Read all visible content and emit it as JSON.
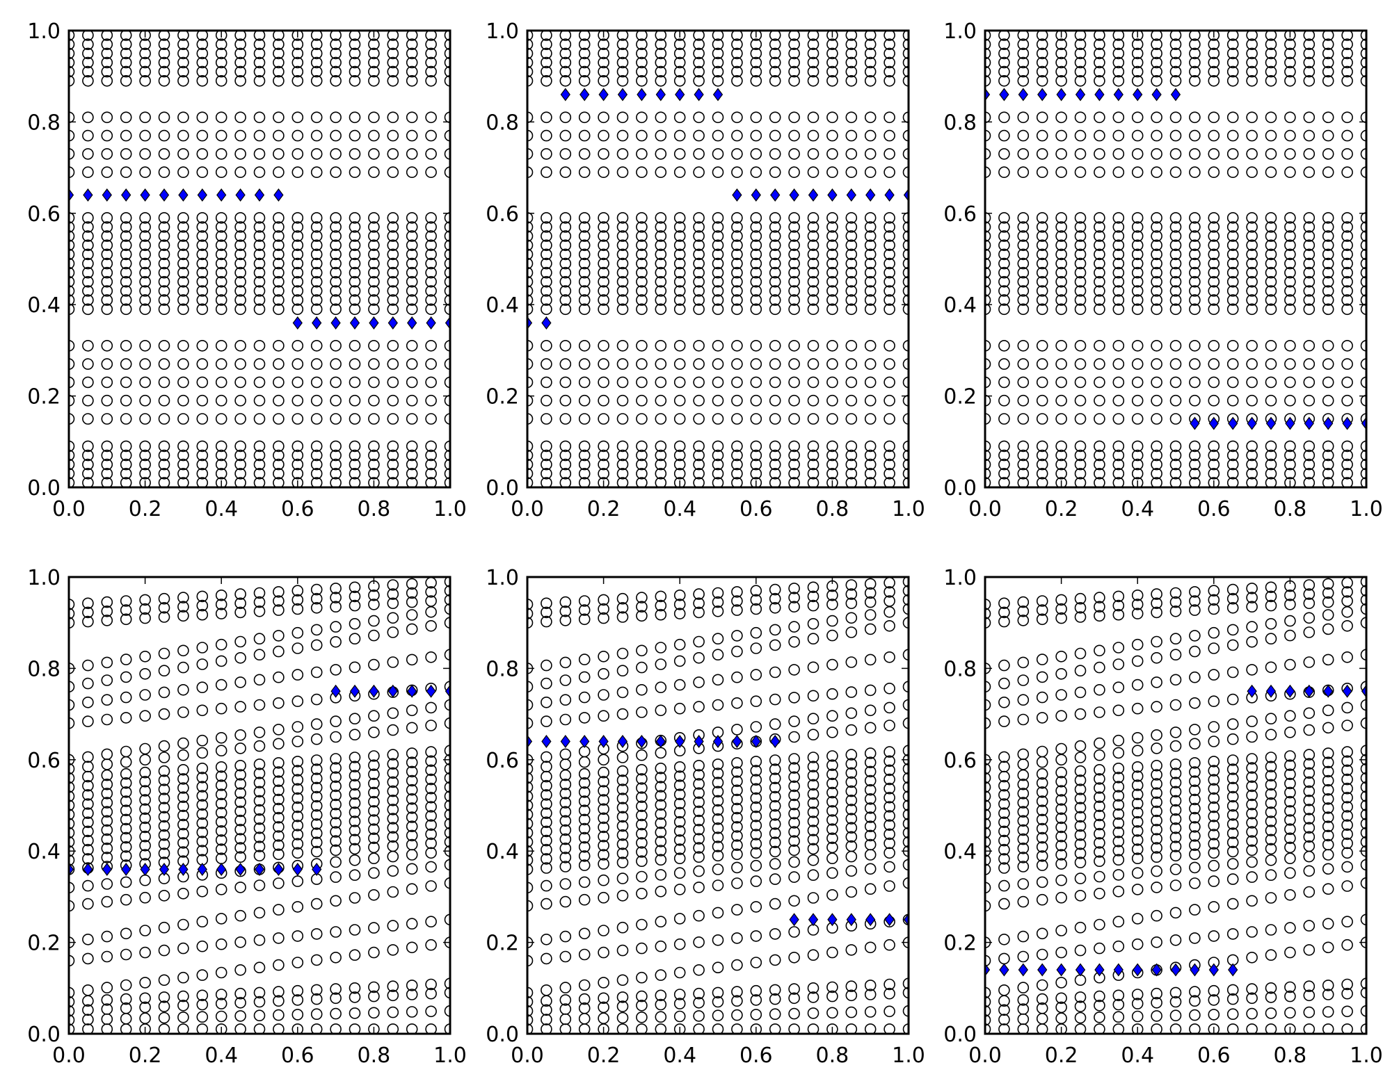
{
  "figure": {
    "background": "#ffffff",
    "layout": "2 rows x 3 columns",
    "shared_ticks": {
      "x": [
        "0.0",
        "0.2",
        "0.4",
        "0.6",
        "0.8",
        "1.0"
      ],
      "y": [
        "0.0",
        "0.2",
        "0.4",
        "0.6",
        "0.8",
        "1.0"
      ]
    },
    "colors": {
      "circle_edge": "#000000",
      "circle_fill": "none",
      "diamond_fill": "#0000ff",
      "diamond_edge": "#000000",
      "axes": "#000000"
    }
  },
  "chart_data": [
    {
      "type": "scatter",
      "title": "",
      "xlabel": "",
      "ylabel": "",
      "xlim": [
        0,
        1
      ],
      "ylim": [
        0,
        1
      ],
      "grid": false,
      "x_ticks": [
        "0.0",
        "0.2",
        "0.4",
        "0.6",
        "0.8",
        "1.0"
      ],
      "y_ticks": [
        "0.0",
        "0.2",
        "0.4",
        "0.6",
        "0.8",
        "1.0"
      ],
      "circle_columns_x": [
        0,
        0.05,
        0.1,
        0.15,
        0.2,
        0.25,
        0.3,
        0.35,
        0.4,
        0.45,
        0.5,
        0.55,
        0.6,
        0.65,
        0.7,
        0.75,
        0.8,
        0.85,
        0.9,
        0.95,
        1.0
      ],
      "circle_row_y_at_x0": [
        0.01,
        0.03,
        0.05,
        0.07,
        0.09,
        0.15,
        0.19,
        0.23,
        0.27,
        0.31,
        0.39,
        0.41,
        0.43,
        0.45,
        0.47,
        0.49,
        0.51,
        0.53,
        0.55,
        0.57,
        0.59,
        0.69,
        0.73,
        0.77,
        0.81,
        0.89,
        0.91,
        0.93,
        0.95,
        0.97,
        0.99
      ],
      "circle_row_y_at_x1": [
        0.01,
        0.03,
        0.05,
        0.07,
        0.09,
        0.15,
        0.19,
        0.23,
        0.27,
        0.31,
        0.39,
        0.41,
        0.43,
        0.45,
        0.47,
        0.49,
        0.51,
        0.53,
        0.55,
        0.57,
        0.59,
        0.69,
        0.73,
        0.77,
        0.81,
        0.89,
        0.91,
        0.93,
        0.95,
        0.97,
        0.99
      ],
      "diamond_segments": [
        {
          "y": 0.64,
          "x": [
            0,
            0.05,
            0.1,
            0.15,
            0.2,
            0.25,
            0.3,
            0.35,
            0.4,
            0.45,
            0.5,
            0.55
          ]
        },
        {
          "y": 0.36,
          "x": [
            0.6,
            0.65,
            0.7,
            0.75,
            0.8,
            0.85,
            0.9,
            0.95,
            1.0
          ]
        }
      ]
    },
    {
      "type": "scatter",
      "title": "",
      "xlabel": "",
      "ylabel": "",
      "xlim": [
        0,
        1
      ],
      "ylim": [
        0,
        1
      ],
      "grid": false,
      "x_ticks": [
        "0.0",
        "0.2",
        "0.4",
        "0.6",
        "0.8",
        "1.0"
      ],
      "y_ticks": [
        "0.0",
        "0.2",
        "0.4",
        "0.6",
        "0.8",
        "1.0"
      ],
      "circle_columns_x": [
        0,
        0.05,
        0.1,
        0.15,
        0.2,
        0.25,
        0.3,
        0.35,
        0.4,
        0.45,
        0.5,
        0.55,
        0.6,
        0.65,
        0.7,
        0.75,
        0.8,
        0.85,
        0.9,
        0.95,
        1.0
      ],
      "circle_row_y_at_x0": [
        0.01,
        0.03,
        0.05,
        0.07,
        0.09,
        0.15,
        0.19,
        0.23,
        0.27,
        0.31,
        0.39,
        0.41,
        0.43,
        0.45,
        0.47,
        0.49,
        0.51,
        0.53,
        0.55,
        0.57,
        0.59,
        0.69,
        0.73,
        0.77,
        0.81,
        0.89,
        0.91,
        0.93,
        0.95,
        0.97,
        0.99
      ],
      "circle_row_y_at_x1": [
        0.01,
        0.03,
        0.05,
        0.07,
        0.09,
        0.15,
        0.19,
        0.23,
        0.27,
        0.31,
        0.39,
        0.41,
        0.43,
        0.45,
        0.47,
        0.49,
        0.51,
        0.53,
        0.55,
        0.57,
        0.59,
        0.69,
        0.73,
        0.77,
        0.81,
        0.89,
        0.91,
        0.93,
        0.95,
        0.97,
        0.99
      ],
      "diamond_segments": [
        {
          "y": 0.36,
          "x": [
            0,
            0.05
          ]
        },
        {
          "y": 0.86,
          "x": [
            0.1,
            0.15,
            0.2,
            0.25,
            0.3,
            0.35,
            0.4,
            0.45,
            0.5
          ]
        },
        {
          "y": 0.64,
          "x": [
            0.55,
            0.6,
            0.65,
            0.7,
            0.75,
            0.8,
            0.85,
            0.9,
            0.95,
            1.0
          ]
        }
      ]
    },
    {
      "type": "scatter",
      "title": "",
      "xlabel": "",
      "ylabel": "",
      "xlim": [
        0,
        1
      ],
      "ylim": [
        0,
        1
      ],
      "grid": false,
      "x_ticks": [
        "0.0",
        "0.2",
        "0.4",
        "0.6",
        "0.8",
        "1.0"
      ],
      "y_ticks": [
        "0.0",
        "0.2",
        "0.4",
        "0.6",
        "0.8",
        "1.0"
      ],
      "circle_columns_x": [
        0,
        0.05,
        0.1,
        0.15,
        0.2,
        0.25,
        0.3,
        0.35,
        0.4,
        0.45,
        0.5,
        0.55,
        0.6,
        0.65,
        0.7,
        0.75,
        0.8,
        0.85,
        0.9,
        0.95,
        1.0
      ],
      "circle_row_y_at_x0": [
        0.01,
        0.03,
        0.05,
        0.07,
        0.09,
        0.15,
        0.19,
        0.23,
        0.27,
        0.31,
        0.39,
        0.41,
        0.43,
        0.45,
        0.47,
        0.49,
        0.51,
        0.53,
        0.55,
        0.57,
        0.59,
        0.69,
        0.73,
        0.77,
        0.81,
        0.89,
        0.91,
        0.93,
        0.95,
        0.97,
        0.99
      ],
      "circle_row_y_at_x1": [
        0.01,
        0.03,
        0.05,
        0.07,
        0.09,
        0.15,
        0.19,
        0.23,
        0.27,
        0.31,
        0.39,
        0.41,
        0.43,
        0.45,
        0.47,
        0.49,
        0.51,
        0.53,
        0.55,
        0.57,
        0.59,
        0.69,
        0.73,
        0.77,
        0.81,
        0.89,
        0.91,
        0.93,
        0.95,
        0.97,
        0.99
      ],
      "diamond_segments": [
        {
          "y": 0.86,
          "x": [
            0,
            0.05,
            0.1,
            0.15,
            0.2,
            0.25,
            0.3,
            0.35,
            0.4,
            0.45,
            0.5
          ]
        },
        {
          "y": 0.14,
          "x": [
            0.55,
            0.6,
            0.65,
            0.7,
            0.75,
            0.8,
            0.85,
            0.9,
            0.95,
            1.0
          ]
        }
      ]
    },
    {
      "type": "scatter",
      "title": "",
      "xlabel": "",
      "ylabel": "",
      "xlim": [
        0,
        1
      ],
      "ylim": [
        0,
        1
      ],
      "grid": false,
      "x_ticks": [
        "0.0",
        "0.2",
        "0.4",
        "0.6",
        "0.8",
        "1.0"
      ],
      "y_ticks": [
        "0.0",
        "0.2",
        "0.4",
        "0.6",
        "0.8",
        "1.0"
      ],
      "circle_columns_x": [
        0,
        0.05,
        0.1,
        0.15,
        0.2,
        0.25,
        0.3,
        0.35,
        0.4,
        0.45,
        0.5,
        0.55,
        0.6,
        0.65,
        0.7,
        0.75,
        0.8,
        0.85,
        0.9,
        0.95,
        1.0
      ],
      "circle_row_y_at_x0": [
        0.01,
        0.03,
        0.05,
        0.07,
        0.09,
        0.16,
        0.2,
        0.28,
        0.32,
        0.36,
        0.38,
        0.4,
        0.42,
        0.44,
        0.46,
        0.48,
        0.5,
        0.52,
        0.54,
        0.56,
        0.58,
        0.6,
        0.68,
        0.72,
        0.76,
        0.8,
        0.9,
        0.92,
        0.94,
        0.96,
        0.98,
        1.0
      ],
      "circle_row_y_at_x1": [
        0.01,
        0.05,
        0.09,
        0.11,
        0.2,
        0.25,
        0.33,
        0.37,
        0.4,
        0.42,
        0.44,
        0.46,
        0.48,
        0.5,
        0.52,
        0.54,
        0.56,
        0.58,
        0.6,
        0.62,
        0.68,
        0.72,
        0.76,
        0.83,
        0.9,
        0.93,
        0.95,
        0.97,
        0.99
      ],
      "diamond_segments": [
        {
          "y": 0.36,
          "x": [
            0,
            0.05,
            0.1,
            0.15,
            0.2,
            0.25,
            0.3,
            0.35,
            0.4,
            0.45,
            0.5,
            0.55,
            0.6,
            0.65
          ]
        },
        {
          "y": 0.75,
          "x": [
            0.7,
            0.75,
            0.8,
            0.85,
            0.9,
            0.95,
            1.0
          ]
        }
      ]
    },
    {
      "type": "scatter",
      "title": "",
      "xlabel": "",
      "ylabel": "",
      "xlim": [
        0,
        1
      ],
      "ylim": [
        0,
        1
      ],
      "grid": false,
      "x_ticks": [
        "0.0",
        "0.2",
        "0.4",
        "0.6",
        "0.8",
        "1.0"
      ],
      "y_ticks": [
        "0.0",
        "0.2",
        "0.4",
        "0.6",
        "0.8",
        "1.0"
      ],
      "circle_columns_x": [
        0,
        0.05,
        0.1,
        0.15,
        0.2,
        0.25,
        0.3,
        0.35,
        0.4,
        0.45,
        0.5,
        0.55,
        0.6,
        0.65,
        0.7,
        0.75,
        0.8,
        0.85,
        0.9,
        0.95,
        1.0
      ],
      "circle_row_y_at_x0": [
        0.01,
        0.03,
        0.05,
        0.07,
        0.09,
        0.16,
        0.2,
        0.28,
        0.32,
        0.36,
        0.38,
        0.4,
        0.42,
        0.44,
        0.46,
        0.48,
        0.5,
        0.52,
        0.54,
        0.56,
        0.58,
        0.6,
        0.68,
        0.72,
        0.76,
        0.8,
        0.9,
        0.92,
        0.94,
        0.96,
        0.98,
        1.0
      ],
      "circle_row_y_at_x1": [
        0.01,
        0.05,
        0.09,
        0.11,
        0.2,
        0.25,
        0.33,
        0.37,
        0.4,
        0.42,
        0.44,
        0.46,
        0.48,
        0.5,
        0.52,
        0.54,
        0.56,
        0.58,
        0.6,
        0.62,
        0.68,
        0.72,
        0.76,
        0.83,
        0.9,
        0.93,
        0.95,
        0.97,
        0.99
      ],
      "diamond_segments": [
        {
          "y": 0.64,
          "x": [
            0,
            0.05,
            0.1,
            0.15,
            0.2,
            0.25,
            0.3,
            0.35,
            0.4,
            0.45,
            0.5,
            0.55,
            0.6,
            0.65
          ]
        },
        {
          "y": 0.25,
          "x": [
            0.7,
            0.75,
            0.8,
            0.85,
            0.9,
            0.95,
            1.0
          ]
        }
      ]
    },
    {
      "type": "scatter",
      "title": "",
      "xlabel": "",
      "ylabel": "",
      "xlim": [
        0,
        1
      ],
      "ylim": [
        0,
        1
      ],
      "grid": false,
      "x_ticks": [
        "0.0",
        "0.2",
        "0.4",
        "0.6",
        "0.8",
        "1.0"
      ],
      "y_ticks": [
        "0.0",
        "0.2",
        "0.4",
        "0.6",
        "0.8",
        "1.0"
      ],
      "circle_columns_x": [
        0,
        0.05,
        0.1,
        0.15,
        0.2,
        0.25,
        0.3,
        0.35,
        0.4,
        0.45,
        0.5,
        0.55,
        0.6,
        0.65,
        0.7,
        0.75,
        0.8,
        0.85,
        0.9,
        0.95,
        1.0
      ],
      "circle_row_y_at_x0": [
        0.01,
        0.03,
        0.05,
        0.07,
        0.09,
        0.16,
        0.2,
        0.28,
        0.32,
        0.36,
        0.38,
        0.4,
        0.42,
        0.44,
        0.46,
        0.48,
        0.5,
        0.52,
        0.54,
        0.56,
        0.58,
        0.6,
        0.68,
        0.72,
        0.76,
        0.8,
        0.9,
        0.92,
        0.94,
        0.96,
        0.98,
        1.0
      ],
      "circle_row_y_at_x1": [
        0.01,
        0.05,
        0.09,
        0.11,
        0.2,
        0.25,
        0.33,
        0.37,
        0.4,
        0.42,
        0.44,
        0.46,
        0.48,
        0.5,
        0.52,
        0.54,
        0.56,
        0.58,
        0.6,
        0.62,
        0.68,
        0.72,
        0.76,
        0.83,
        0.9,
        0.93,
        0.95,
        0.97,
        0.99
      ],
      "diamond_segments": [
        {
          "y": 0.14,
          "x": [
            0,
            0.05,
            0.1,
            0.15,
            0.2,
            0.25,
            0.3,
            0.35,
            0.4,
            0.45,
            0.5,
            0.55,
            0.6,
            0.65
          ]
        },
        {
          "y": 0.75,
          "x": [
            0.7,
            0.75,
            0.8,
            0.85,
            0.9,
            0.95,
            1.0
          ]
        }
      ]
    }
  ]
}
